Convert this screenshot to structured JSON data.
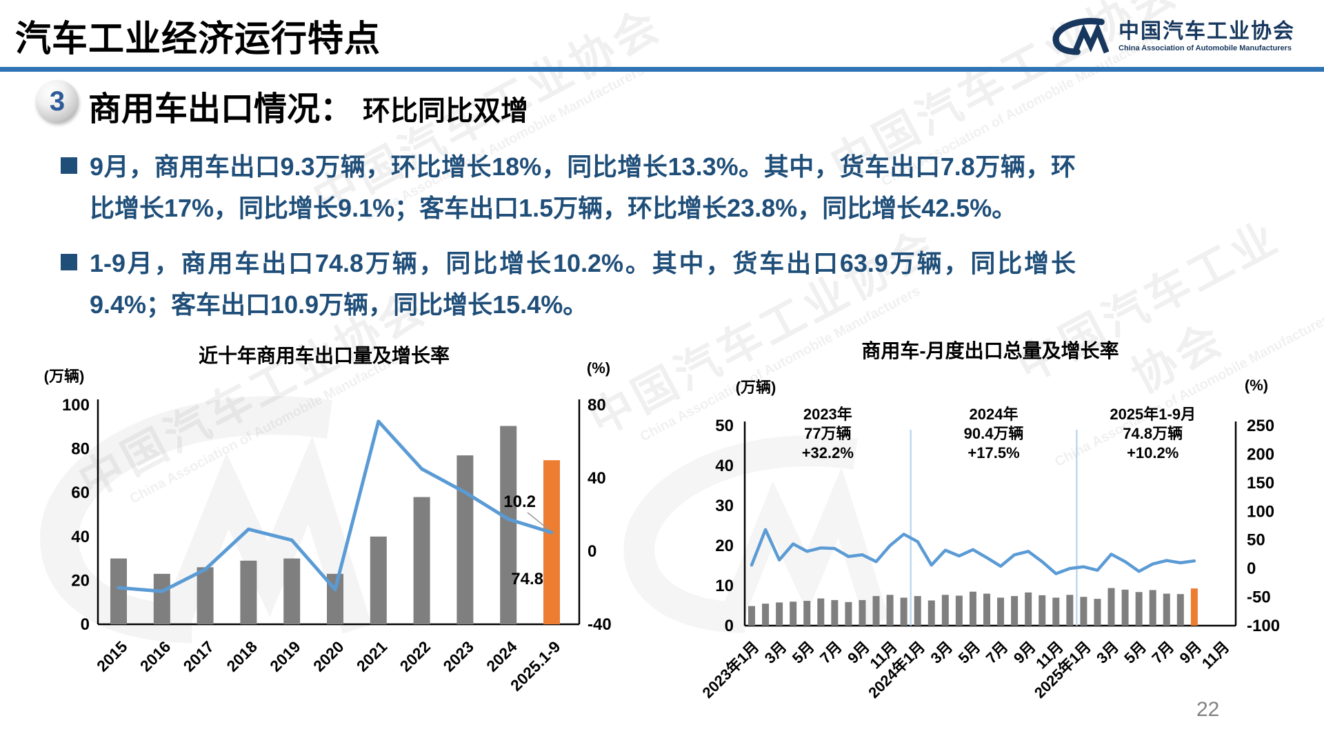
{
  "header": {
    "title": "汽车工业经济运行特点"
  },
  "logo": {
    "cn": "中国汽车工业协会",
    "en": "China Association of Automobile Manufacturers"
  },
  "section": {
    "number": "3",
    "heading": "商用车出口情况：",
    "subheading": "环比同比双增"
  },
  "bullets": [
    "9月，商用车出口9.3万辆，环比增长18%，同比增长13.3%。其中，货车出口7.8万辆，环比增长17%，同比增长9.1%；客车出口1.5万辆，环比增长23.8%，同比增长42.5%。",
    "1-9月，商用车出口74.8万辆，同比增长10.2%。其中，货车出口63.9万辆，同比增长9.4%；客车出口10.9万辆，同比增长15.4%。"
  ],
  "page_number": "22",
  "watermark": {
    "cn": "中国汽车工业协会",
    "en": "China Association of Automobile Manufacturers"
  },
  "colors": {
    "accent_blue": "#2E74B5",
    "text_blue": "#1F4E79",
    "bar_gray": "#7F7F7F",
    "bar_orange": "#ED7D31",
    "line_blue": "#5B9BD5",
    "divider_blue": "#BDD7EE",
    "logo_navy": "#17375E"
  },
  "chart_data": [
    {
      "type": "bar+line",
      "title": "近十年商用车出口量及增长率",
      "left_axis_label": "(万辆)",
      "right_axis_label": "(%)",
      "categories": [
        "2015",
        "2016",
        "2017",
        "2018",
        "2019",
        "2020",
        "2021",
        "2022",
        "2023",
        "2024",
        "2025.1-9"
      ],
      "series": [
        {
          "name": "出口量(万辆)",
          "kind": "bar",
          "axis": "left",
          "values": [
            30,
            23,
            26,
            29,
            30,
            23,
            40,
            58,
            77,
            90.4,
            74.8
          ]
        },
        {
          "name": "增长率(%)",
          "kind": "line",
          "axis": "right",
          "values": [
            -20,
            -22,
            -10,
            12,
            6,
            -21,
            71,
            45,
            32.2,
            17.5,
            10.2
          ]
        }
      ],
      "left_ylim": [
        0,
        100
      ],
      "left_ticks": [
        0,
        20,
        40,
        60,
        80,
        100
      ],
      "right_ylim": [
        -40,
        80
      ],
      "right_ticks": [
        -40,
        0,
        40,
        80
      ],
      "grid": false,
      "legend": "none",
      "last_bar_color": "#ED7D31",
      "line_end_label": "10.2",
      "last_bar_label": "74.8"
    },
    {
      "type": "bar+line",
      "title": "商用车-月度出口总量及增长率",
      "left_axis_label": "(万辆)",
      "right_axis_label": "(%)",
      "x_tick_labels": [
        "2023年1月",
        "3月",
        "5月",
        "7月",
        "9月",
        "11月",
        "2024年1月",
        "3月",
        "5月",
        "7月",
        "9月",
        "11月",
        "2025年1月",
        "3月",
        "5月",
        "7月",
        "9月",
        "11月"
      ],
      "x_tick_positions": [
        0,
        2,
        4,
        6,
        8,
        10,
        12,
        14,
        16,
        18,
        20,
        22,
        24,
        26,
        28,
        30,
        32,
        34
      ],
      "n_slots": 35,
      "series": [
        {
          "name": "月度出口量(万辆)",
          "kind": "bar",
          "axis": "left",
          "values": [
            4.9,
            5.5,
            5.8,
            6.0,
            6.2,
            6.8,
            6.4,
            5.9,
            6.4,
            7.4,
            7.7,
            7.0,
            7.4,
            6.3,
            7.7,
            7.5,
            8.5,
            8.0,
            7.0,
            7.4,
            8.3,
            7.6,
            7.0,
            7.7,
            7.2,
            6.7,
            9.4,
            9.0,
            8.4,
            8.9,
            8.0,
            7.9,
            9.3
          ]
        },
        {
          "name": "同比增长率(%)",
          "kind": "line",
          "axis": "right",
          "values": [
            6,
            68,
            15,
            43,
            30,
            36,
            35,
            21,
            24,
            12,
            40,
            60,
            47,
            6,
            32,
            22,
            33,
            19,
            4,
            24,
            30,
            12,
            -9,
            0,
            3,
            -3,
            25,
            12,
            -5,
            8,
            14,
            10,
            13.3
          ]
        }
      ],
      "left_ylim": [
        0,
        50
      ],
      "left_ticks": [
        0,
        10,
        20,
        30,
        40,
        50
      ],
      "right_ylim": [
        -100,
        250
      ],
      "right_ticks": [
        -100,
        -50,
        0,
        50,
        100,
        150,
        200,
        250
      ],
      "grid": false,
      "legend": "none",
      "last_bar_color": "#ED7D31",
      "dividers_after_index": [
        11,
        23
      ],
      "annotations": [
        {
          "lines": [
            "2023年",
            "77万辆",
            "+32.2%"
          ]
        },
        {
          "lines": [
            "2024年",
            "90.4万辆",
            "+17.5%"
          ]
        },
        {
          "lines": [
            "2025年1-9月",
            "74.8万辆",
            "+10.2%"
          ]
        }
      ]
    }
  ]
}
